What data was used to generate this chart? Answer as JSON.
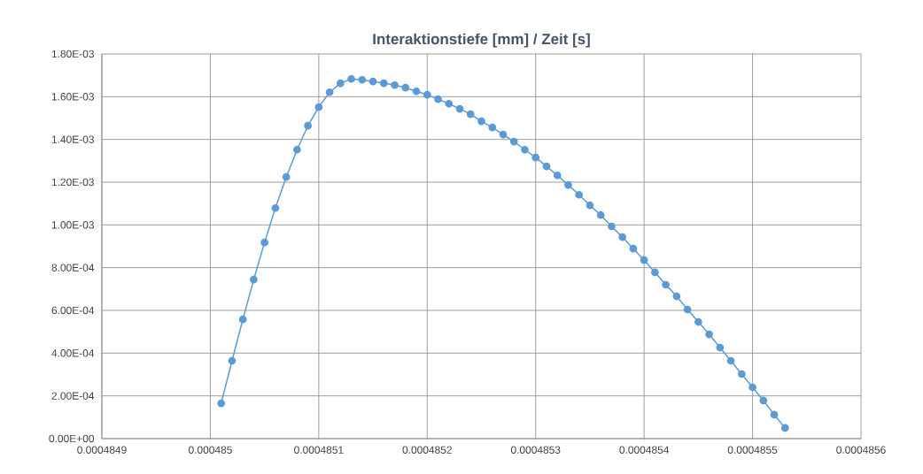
{
  "chart_data": {
    "type": "line",
    "title": "Interaktionstiefe [mm] / Zeit [s]",
    "x": [
      0.00048501,
      0.00048502,
      0.00048503,
      0.00048504,
      0.00048505,
      0.00048506,
      0.00048507,
      0.00048508,
      0.00048509,
      0.0004851,
      0.00048511,
      0.00048512,
      0.00048513,
      0.00048514,
      0.00048515,
      0.00048516,
      0.00048517,
      0.00048518,
      0.00048519,
      0.0004852,
      0.00048521,
      0.00048522,
      0.00048523,
      0.00048524,
      0.00048525,
      0.00048526,
      0.00048527,
      0.00048528,
      0.00048529,
      0.0004853,
      0.00048531,
      0.00048532,
      0.00048533,
      0.00048534,
      0.00048535,
      0.00048536,
      0.00048537,
      0.00048538,
      0.00048539,
      0.0004854,
      0.00048541,
      0.00048542,
      0.00048543,
      0.00048544,
      0.00048545,
      0.00048546,
      0.00048547,
      0.00048548,
      0.00048549,
      0.0004855,
      0.00048551,
      0.00048552,
      0.00048553
    ],
    "series": [
      {
        "color": "#5b9bd5",
        "values": [
          0.000165,
          0.000364,
          0.000558,
          0.000744,
          0.000918,
          0.001079,
          0.001224,
          0.001352,
          0.001464,
          0.001551,
          0.001621,
          0.001663,
          0.001683,
          0.001679,
          0.001671,
          0.001663,
          0.001654,
          0.001642,
          0.001625,
          0.001609,
          0.001588,
          0.001567,
          0.001543,
          0.001518,
          0.001485,
          0.001456,
          0.001423,
          0.00139,
          0.001352,
          0.001315,
          0.001274,
          0.001232,
          0.001187,
          0.001141,
          0.001092,
          0.001046,
          0.000993,
          0.000943,
          0.000889,
          0.000835,
          0.000778,
          0.00072,
          0.000666,
          0.000604,
          0.000546,
          0.000488,
          0.000426,
          0.000364,
          0.000302,
          0.00024,
          0.000178,
          0.000112,
          5e-05
        ]
      }
    ],
    "xlim": [
      0.0004849,
      0.0004856
    ],
    "xticks": [
      0.0004849,
      0.000485,
      0.0004851,
      0.0004852,
      0.0004853,
      0.0004854,
      0.0004855,
      0.0004856
    ],
    "ylim": [
      0,
      0.0018
    ],
    "yticks": [
      {
        "value": 0,
        "label": "0.00E+00"
      },
      {
        "value": 0.0002,
        "label": "2.00E-04"
      },
      {
        "value": 0.0004,
        "label": "4.00E-04"
      },
      {
        "value": 0.0006,
        "label": "6.00E-04"
      },
      {
        "value": 0.0008,
        "label": "8.00E-04"
      },
      {
        "value": 0.001,
        "label": "1.00E-03"
      },
      {
        "value": 0.0012,
        "label": "1.20E-03"
      },
      {
        "value": 0.0014,
        "label": "1.40E-03"
      },
      {
        "value": 0.0016,
        "label": "1.60E-03"
      },
      {
        "value": 0.0018,
        "label": "1.80E-03"
      }
    ],
    "grid": true,
    "marker": "circle",
    "line_style": "solid"
  }
}
